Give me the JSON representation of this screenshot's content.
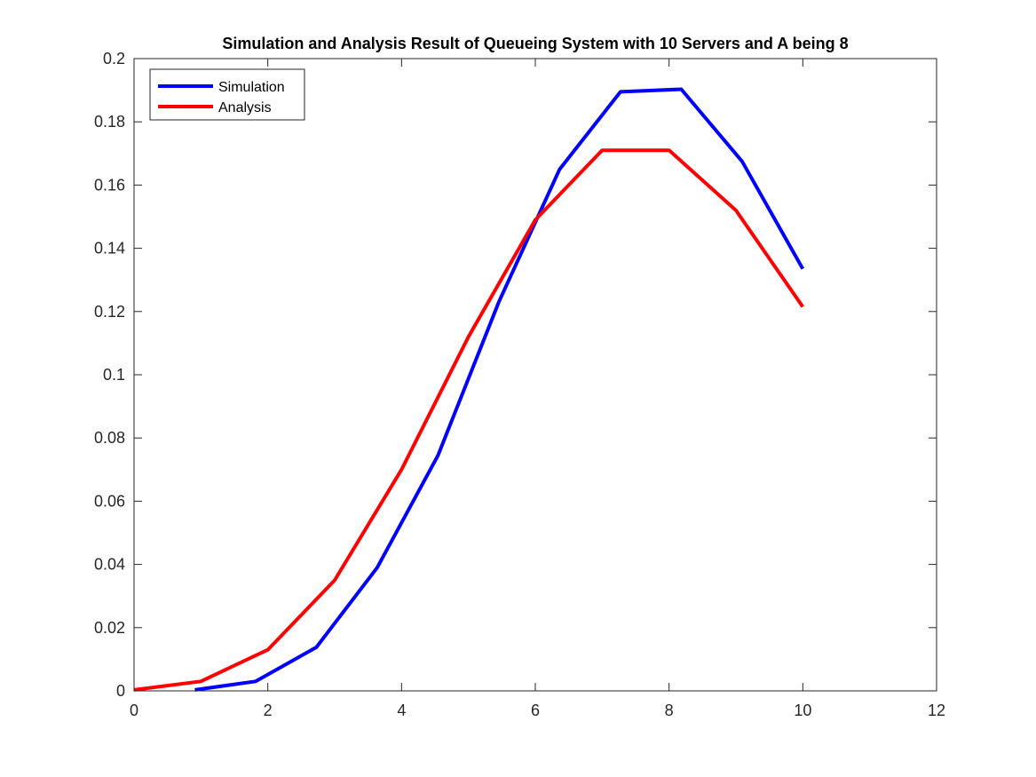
{
  "chart_data": {
    "type": "line",
    "title": "Simulation and Analysis Result of Queueing System with 10 Servers and A being 8",
    "xlabel": "",
    "ylabel": "",
    "xlim": [
      0,
      12
    ],
    "ylim": [
      0,
      0.2
    ],
    "x_ticks": [
      0,
      2,
      4,
      6,
      8,
      10,
      12
    ],
    "x_tick_labels": [
      "0",
      "2",
      "4",
      "6",
      "8",
      "10",
      "12"
    ],
    "y_ticks": [
      0,
      0.02,
      0.04,
      0.06,
      0.08,
      0.1,
      0.12,
      0.14,
      0.16,
      0.18,
      0.2
    ],
    "y_tick_labels": [
      "0",
      "0.02",
      "0.04",
      "0.06",
      "0.08",
      "0.1",
      "0.12",
      "0.14",
      "0.16",
      "0.18",
      "0.2"
    ],
    "grid": false,
    "legend_position": "top-left",
    "series": [
      {
        "name": "Simulation",
        "color": "#0000ff",
        "x": [
          0.909,
          1.818,
          2.727,
          3.636,
          4.545,
          5.455,
          6.364,
          7.273,
          8.182,
          9.091,
          10
        ],
        "y": [
          0.0003,
          0.003,
          0.0138,
          0.039,
          0.0745,
          0.123,
          0.165,
          0.1895,
          0.1903,
          0.1675,
          0.1335
        ]
      },
      {
        "name": "Analysis",
        "color": "#ff0000",
        "x": [
          0,
          1,
          2,
          3,
          4,
          5,
          6,
          7,
          8,
          9,
          10
        ],
        "y": [
          0.0003,
          0.003,
          0.013,
          0.035,
          0.07,
          0.112,
          0.149,
          0.171,
          0.171,
          0.152,
          0.1215
        ]
      }
    ]
  }
}
